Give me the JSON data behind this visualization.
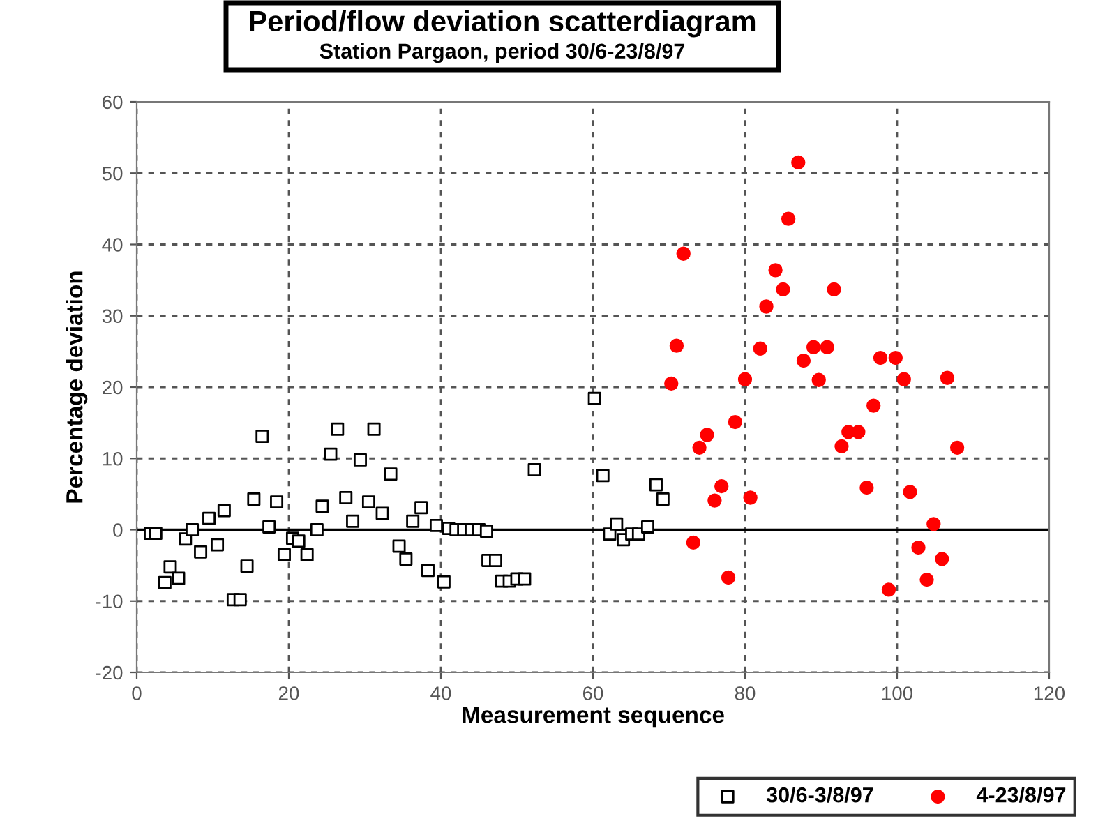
{
  "chart_data": {
    "type": "scatter",
    "title": "Period/flow deviation scatterdiagram",
    "subtitle": "Station Pargaon, period 30/6-23/8/97",
    "xlabel": "Measurement sequence",
    "ylabel": "Percentage deviation",
    "xlim": [
      0,
      120
    ],
    "xticks": [
      0,
      20,
      40,
      60,
      80,
      100,
      120
    ],
    "ylim": [
      -20,
      60
    ],
    "yticks": [
      -20,
      -10,
      0,
      10,
      20,
      30,
      40,
      50,
      60
    ],
    "grid": true,
    "legend": "bottom right",
    "ref_lines": [
      {
        "axis": "y",
        "value": 0,
        "label": null,
        "color": "#000000",
        "line_style": "solid"
      }
    ],
    "series": [
      {
        "name": "30/6-3/8/97",
        "color": "#000000",
        "marker": "square",
        "x": [
          1.8,
          2.5,
          3.7,
          4.4,
          5.5,
          6.4,
          7.3,
          8.4,
          9.5,
          10.6,
          11.5,
          12.7,
          13.6,
          14.5,
          15.4,
          16.5,
          17.4,
          18.4,
          19.4,
          20.5,
          21.3,
          22.4,
          23.7,
          24.4,
          25.5,
          26.4,
          27.5,
          28.4,
          29.4,
          30.5,
          31.2,
          32.3,
          33.4,
          34.5,
          35.4,
          36.3,
          37.4,
          38.3,
          39.4,
          40.4,
          41,
          42,
          43,
          44,
          45,
          46,
          46.2,
          47.2,
          48,
          49,
          50,
          51,
          52.3,
          60.2,
          61.3,
          62.2,
          63.1,
          64,
          65.1,
          66,
          67.2,
          68.3,
          69.2
        ],
        "values": [
          -0.5,
          -0.5,
          -7.4,
          -5.2,
          -6.8,
          -1.3,
          0,
          -3.1,
          1.6,
          -2.1,
          2.7,
          -9.8,
          -9.8,
          -5.1,
          4.3,
          13.1,
          0.4,
          3.9,
          -3.5,
          -1.2,
          -1.6,
          -3.5,
          0,
          3.3,
          10.6,
          14.1,
          4.5,
          1.2,
          9.8,
          3.9,
          14.1,
          2.3,
          7.8,
          -2.3,
          -4.1,
          1.2,
          3.1,
          -5.7,
          0.6,
          -7.3,
          0.2,
          0,
          0,
          0,
          0,
          -0.2,
          -4.3,
          -4.3,
          -7.2,
          -7.2,
          -6.9,
          -6.9,
          8.4,
          18.4,
          7.6,
          -0.6,
          0.8,
          -1.4,
          -0.6,
          -0.6,
          0.4,
          6.3,
          4.3
        ]
      },
      {
        "name": "4-23/8/97",
        "color": "#ff0000",
        "marker": "circle",
        "x": [
          70.3,
          71,
          71.9,
          73.2,
          74,
          75,
          76,
          76.9,
          77.8,
          78.7,
          80,
          80.7,
          82,
          82.8,
          84,
          85,
          85.7,
          87,
          87.7,
          89,
          89.7,
          90.8,
          91.7,
          92.7,
          93.6,
          94.9,
          96,
          96.9,
          97.8,
          98.9,
          99.8,
          100.9,
          101.7,
          102.8,
          103.9,
          104.8,
          105.9,
          106.6,
          107.9
        ],
        "values": [
          20.5,
          25.8,
          38.7,
          -1.8,
          11.5,
          13.3,
          4.1,
          6.1,
          -6.7,
          15.1,
          21.1,
          4.5,
          25.4,
          31.3,
          36.4,
          33.7,
          43.6,
          51.5,
          23.7,
          25.6,
          21,
          25.6,
          33.7,
          11.7,
          13.7,
          13.7,
          5.9,
          17.4,
          24.1,
          -8.4,
          24.1,
          21.1,
          5.3,
          -2.5,
          -7,
          0.8,
          -4.1,
          21.3,
          11.5
        ]
      }
    ]
  }
}
